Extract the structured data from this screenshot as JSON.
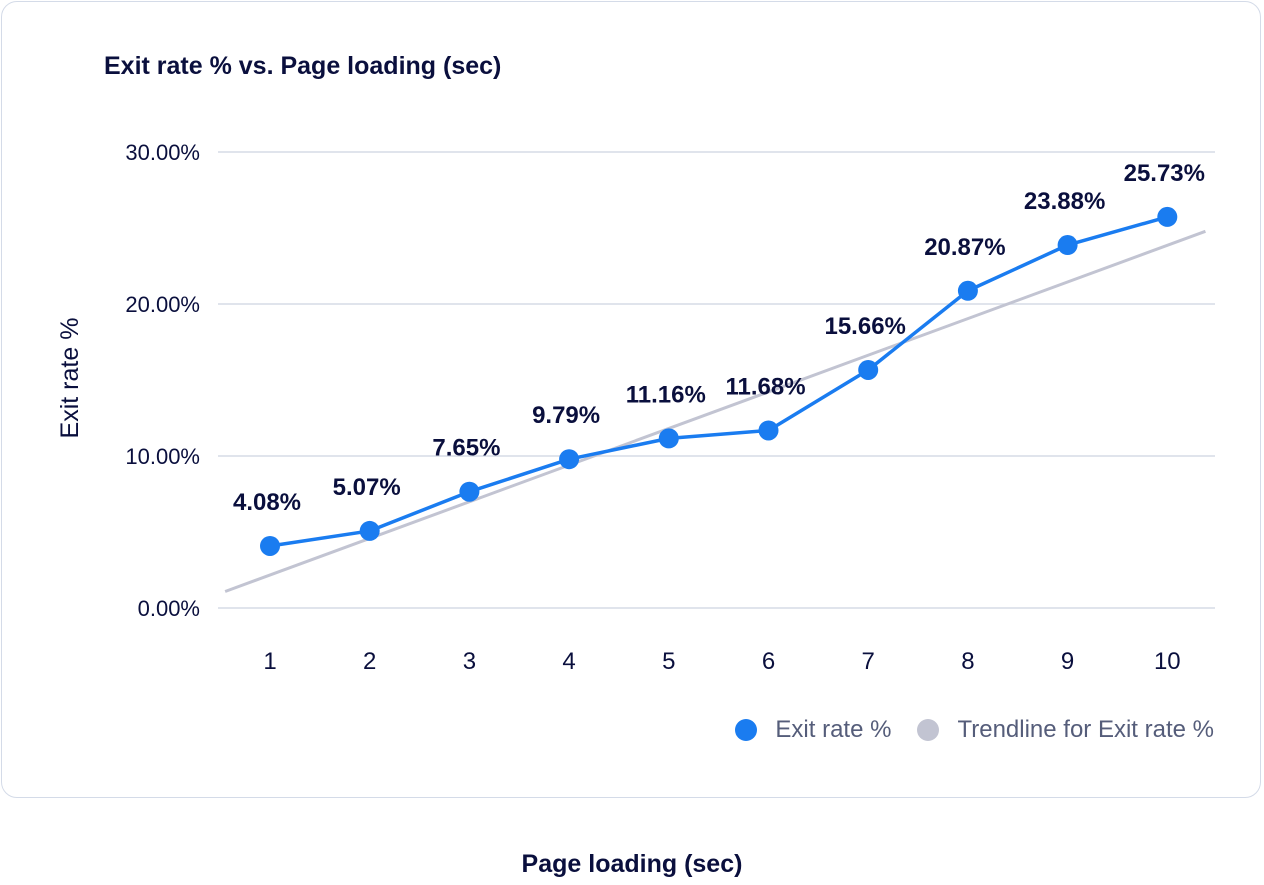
{
  "chart_data": {
    "type": "line",
    "title": "Exit rate % vs. Page loading (sec)",
    "xlabel": "Page loading (sec)",
    "ylabel": "Exit rate %",
    "categories": [
      "1",
      "2",
      "3",
      "4",
      "5",
      "6",
      "7",
      "8",
      "9",
      "10"
    ],
    "series": [
      {
        "name": "Exit rate %",
        "values": [
          4.08,
          5.07,
          7.65,
          9.79,
          11.16,
          11.68,
          15.66,
          20.87,
          23.88,
          25.73
        ],
        "labels": [
          "4.08%",
          "5.07%",
          "7.65%",
          "9.79%",
          "11.16%",
          "11.68%",
          "15.66%",
          "20.87%",
          "23.88%",
          "25.73%"
        ],
        "color": "#1a7cf0"
      },
      {
        "name": "Trendline for Exit rate %",
        "type": "linear-trendline",
        "values": [
          2.17,
          4.58,
          6.99,
          9.4,
          11.81,
          14.22,
          16.63,
          19.04,
          21.45,
          23.86
        ],
        "color": "#c2c4d2"
      }
    ],
    "ylim": [
      0,
      30
    ],
    "yticks": [
      0,
      10,
      20,
      30
    ],
    "ytick_labels": [
      "0.00%",
      "10.00%",
      "20.00%",
      "30.00%"
    ],
    "grid": true,
    "legend": "bottom-right"
  }
}
